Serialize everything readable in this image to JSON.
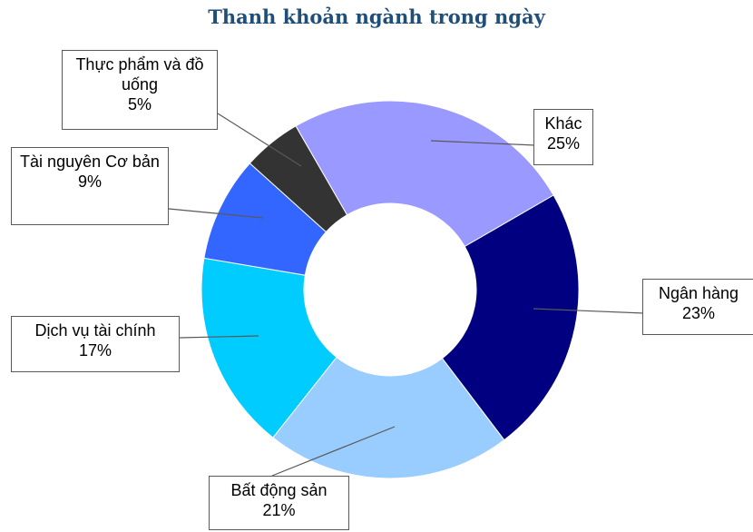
{
  "chart_data": {
    "type": "donut",
    "title": "Thanh khoản ngành trong ngày",
    "categories": [
      "Khác",
      "Ngân hàng",
      "Bất động sản",
      "Dịch vụ tài chính",
      "Tài nguyên Cơ bản",
      "Thực phẩm và đồ uống"
    ],
    "values": [
      25,
      23,
      21,
      17,
      9,
      5
    ],
    "value_labels": [
      "25%",
      "23%",
      "21%",
      "17%",
      "9%",
      "5%"
    ],
    "colors": [
      "#9999ff",
      "#000080",
      "#99ccff",
      "#00ccff",
      "#3366ff",
      "#333333"
    ]
  }
}
